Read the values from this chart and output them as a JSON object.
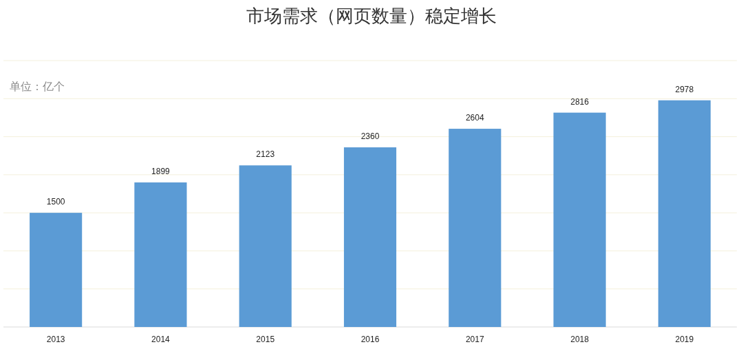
{
  "chart_data": {
    "type": "bar",
    "title": "市场需求（网页数量）稳定增长",
    "ylabel": "单位：亿个",
    "categories": [
      "2013",
      "2014",
      "2015",
      "2016",
      "2017",
      "2018",
      "2019"
    ],
    "values": [
      1500,
      1899,
      2123,
      2360,
      2604,
      2816,
      2978
    ],
    "color": "#5b9bd5",
    "ylim": [
      0,
      3500
    ],
    "yticks": [
      {
        "value": 0,
        "label": null
      },
      {
        "value": 500,
        "label": null
      },
      {
        "value": 1000,
        "label": null
      },
      {
        "value": 1500,
        "label": null
      },
      {
        "value": 2000,
        "label": null
      },
      {
        "value": 2500,
        "label": null
      },
      {
        "value": 3000,
        "label": null
      },
      {
        "value": 3500,
        "label": null
      }
    ],
    "grid": "y",
    "tick_labels": "x",
    "data_labels": true
  }
}
